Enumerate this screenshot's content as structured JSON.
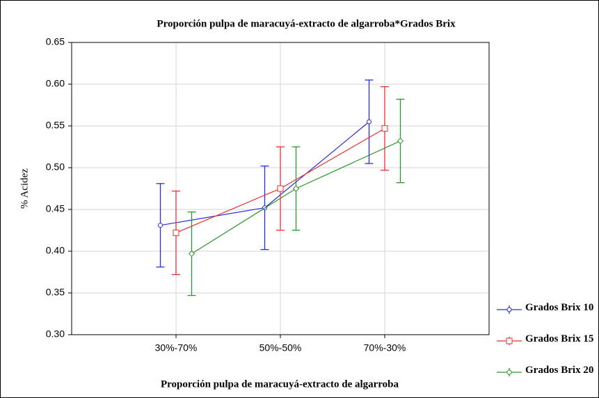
{
  "chart_data": {
    "type": "line",
    "title": "Proporción pulpa de maracuyá-extracto de algarroba*Grados Brix",
    "x_label": "Proporción pulpa de maracuyá-extracto de algarroba",
    "y_label": "% Acidez",
    "categories": [
      "30%-70%",
      "50%-50%",
      "70%-30%"
    ],
    "series": [
      {
        "name": "Grados Brix 10",
        "color": "#2a2ae0",
        "marker": "circle",
        "values": [
          0.431,
          0.452,
          0.555
        ],
        "errors": [
          0.05,
          0.05,
          0.05
        ]
      },
      {
        "name": "Grados Brix 15",
        "color": "#e83030",
        "marker": "square",
        "values": [
          0.422,
          0.475,
          0.547
        ],
        "errors": [
          0.05,
          0.05,
          0.05
        ]
      },
      {
        "name": "Grados Brix 20",
        "color": "#2a962a",
        "marker": "diamond",
        "values": [
          0.397,
          0.475,
          0.532
        ],
        "errors": [
          0.05,
          0.05,
          0.05
        ]
      }
    ],
    "ylim": [
      0.3,
      0.65
    ],
    "yticks": [
      {
        "value": 0.3,
        "label": "0.30"
      },
      0.35,
      {
        "value": 0.4,
        "label": "0.40"
      },
      0.45,
      {
        "value": 0.5,
        "label": "0.50"
      },
      0.55,
      {
        "value": 0.6,
        "label": "0.60"
      },
      0.65
    ],
    "grid": true,
    "legend": "bottom-right"
  }
}
